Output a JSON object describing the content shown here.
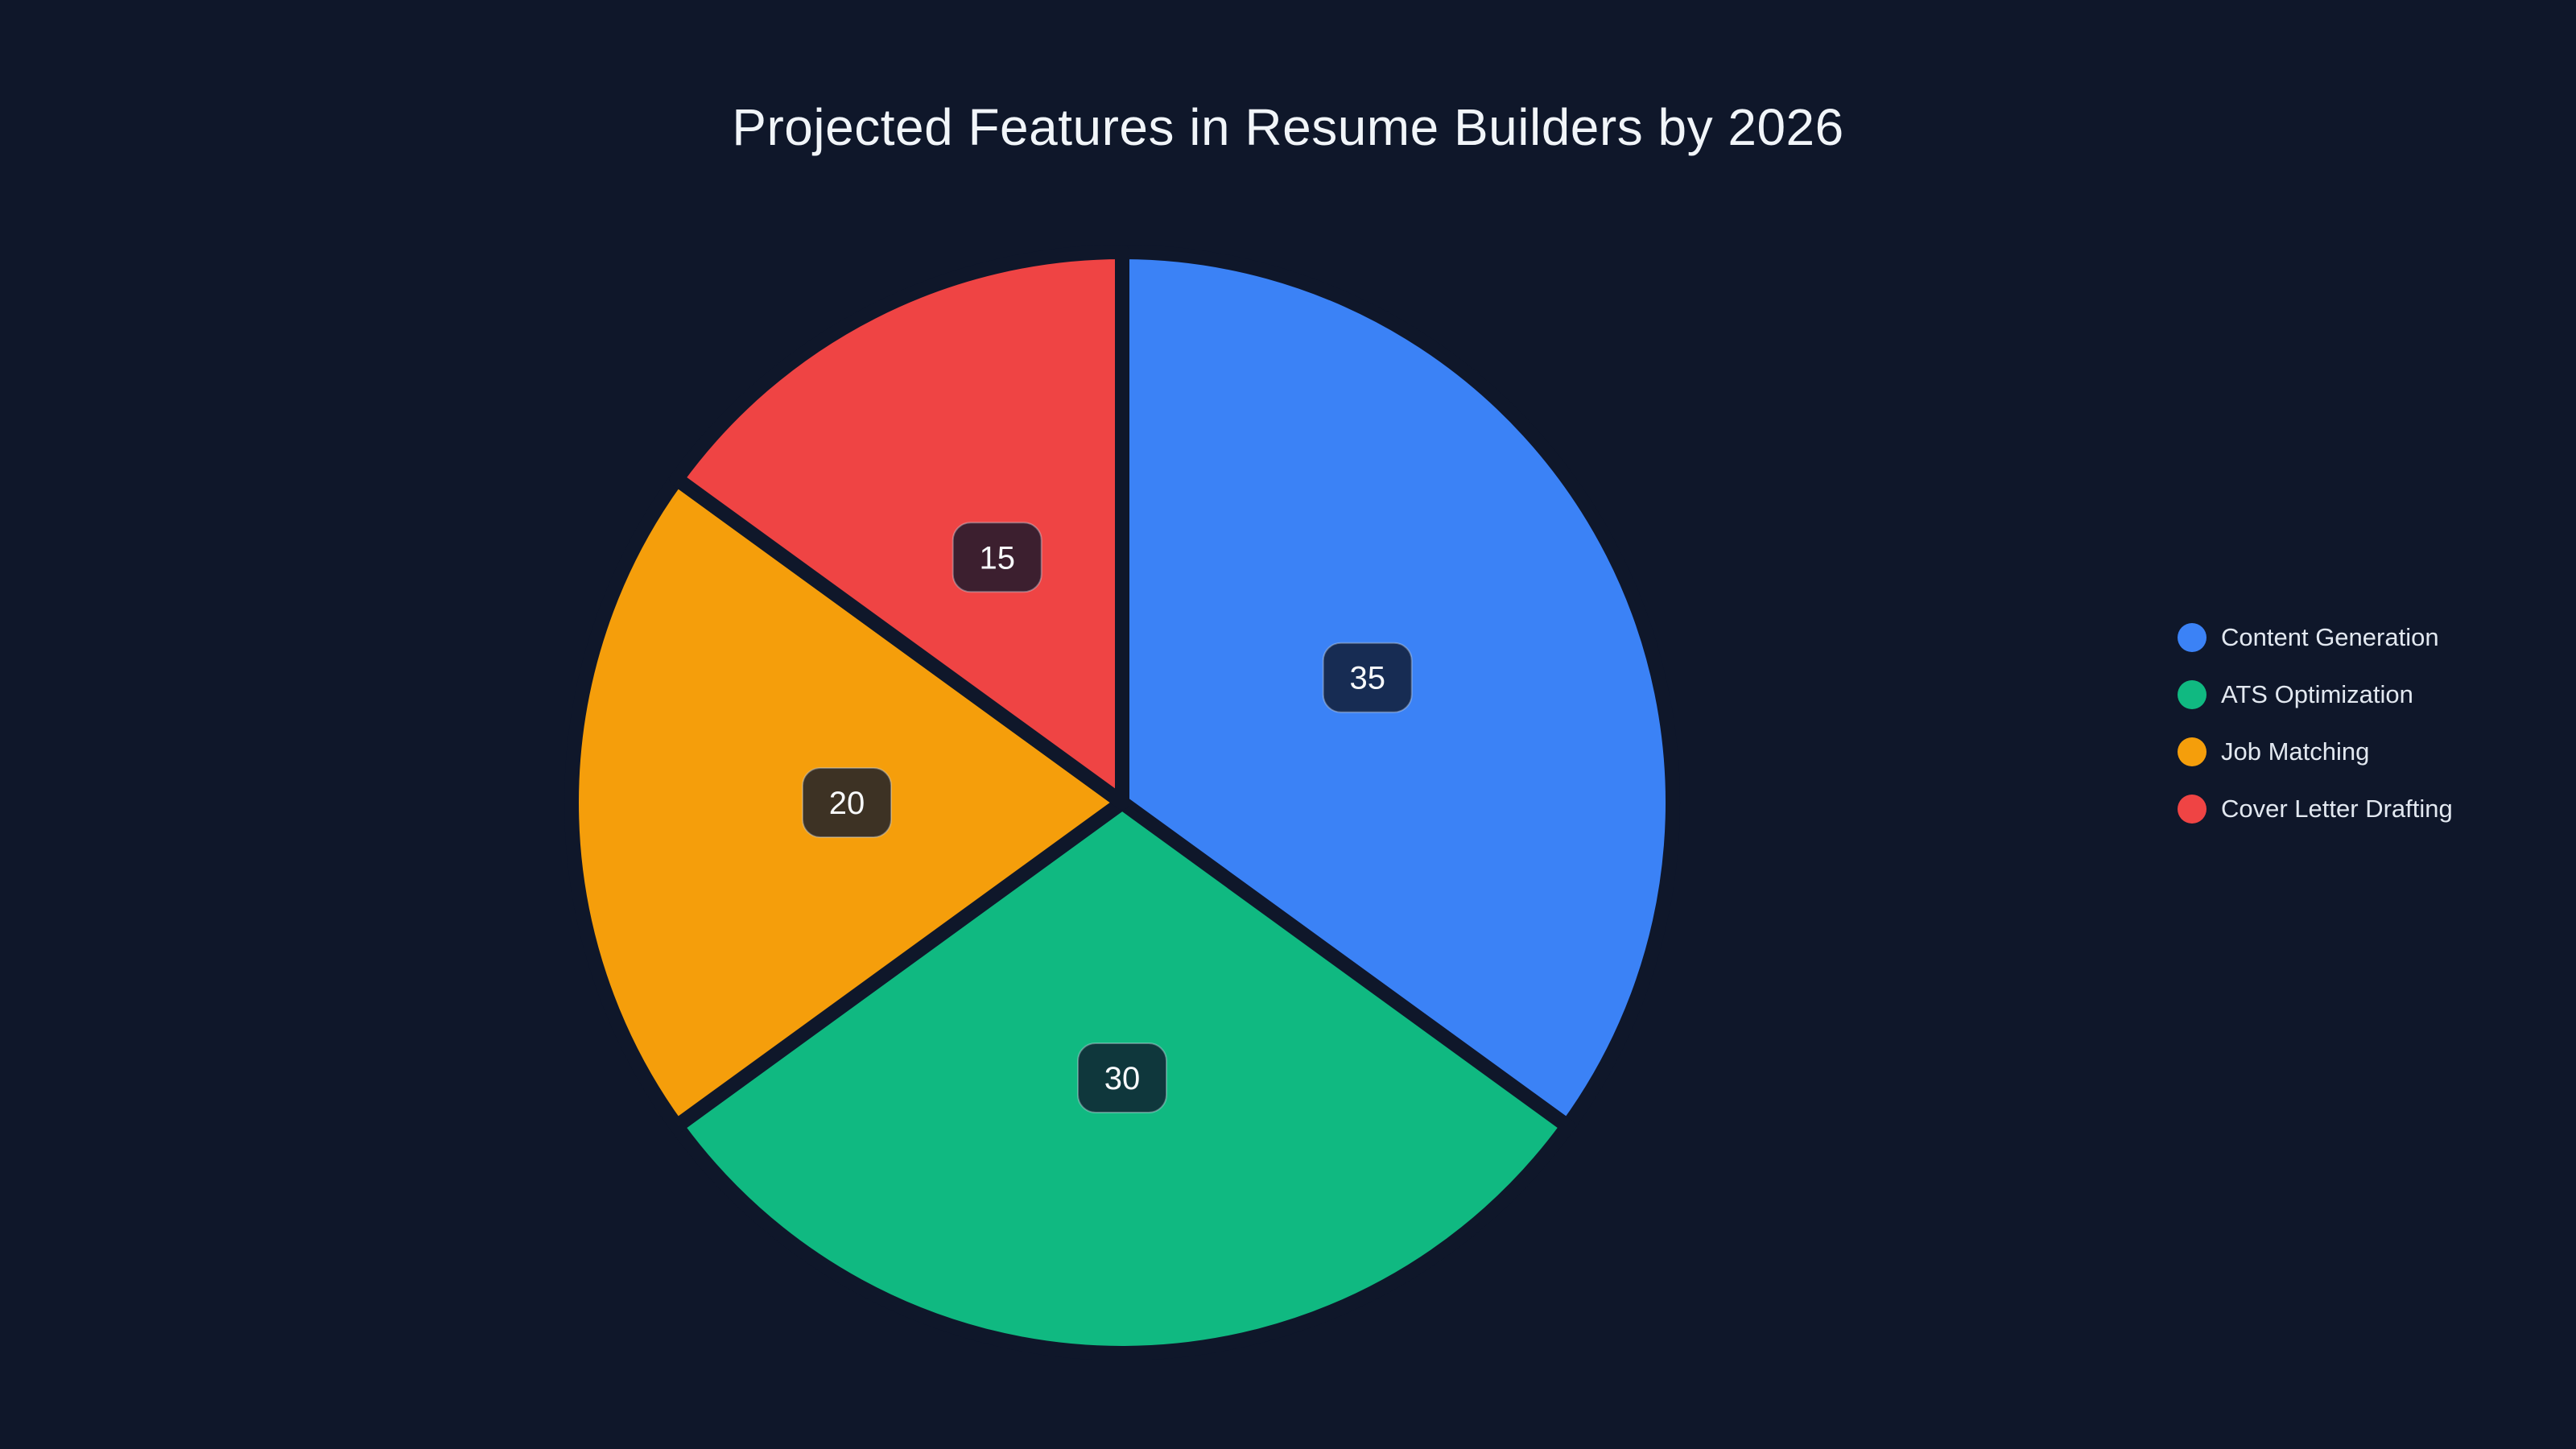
{
  "page": {
    "background_color": "#0f172a"
  },
  "chart_data": {
    "type": "pie",
    "title": "Projected Features in Resume Builders by 2026",
    "labels": [
      "Content Generation",
      "ATS Optimization",
      "Job Matching",
      "Cover Letter Drafting"
    ],
    "values": [
      35,
      30,
      20,
      15
    ],
    "colors": [
      "#3b82f6",
      "#10b981",
      "#f59e0b",
      "#ef4444"
    ],
    "start_angle": "top",
    "direction": "clockwise",
    "slice_gap_color": "#0f172a",
    "value_labels": [
      "35",
      "30",
      "20",
      "15"
    ],
    "value_label_style": {
      "background": "rgba(15, 23, 42, 0.8)",
      "border_color": "rgba(203, 213, 225, 0.4)",
      "text_color": "#f8fafc"
    },
    "legend": {
      "position": "right",
      "text_color": "#e2e8f0"
    },
    "title_color": "#f1f5f9"
  }
}
